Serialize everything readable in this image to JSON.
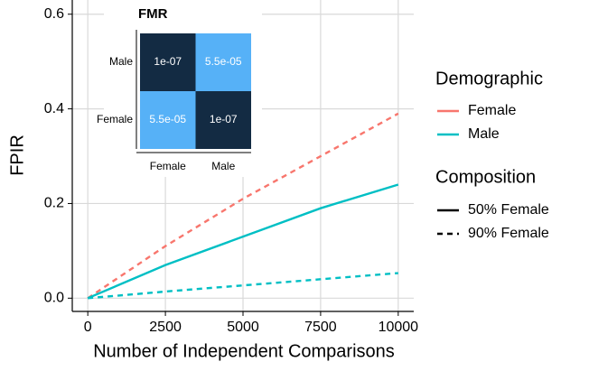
{
  "chart_data": {
    "type": "line",
    "x_label": "Number of Independent Comparisons",
    "y_label": "FPIR",
    "x": [
      0,
      2500,
      5000,
      7500,
      10000
    ],
    "xlim": [
      -500,
      10500
    ],
    "ylim": [
      -0.028,
      0.63
    ],
    "xticks": [
      0,
      2500,
      5000,
      7500,
      10000
    ],
    "yticks": [
      {
        "value": 0,
        "label": "0.0"
      },
      0.2,
      0.4,
      0.6
    ],
    "grid": true,
    "series": [
      {
        "demographic": "Female",
        "composition": "90% Female",
        "color": "#f8766d",
        "dashed": true,
        "values": [
          0,
          0.11,
          0.21,
          0.3,
          0.39
        ]
      },
      {
        "demographic": "Male",
        "composition": "50% Female",
        "color": "#00bfc4",
        "dashed": false,
        "values": [
          0,
          0.07,
          0.13,
          0.19,
          0.24
        ]
      },
      {
        "demographic": "Male",
        "composition": "90% Female",
        "color": "#00bfc4",
        "dashed": true,
        "values": [
          0,
          0.014,
          0.027,
          0.04,
          0.053
        ]
      }
    ],
    "legend": {
      "demographic_title": "Demographic",
      "demographic": [
        {
          "name": "Female",
          "color": "#f8766d"
        },
        {
          "name": "Male",
          "color": "#00bfc4"
        }
      ],
      "composition_title": "Composition",
      "composition": [
        {
          "name": "50% Female",
          "dashed": false
        },
        {
          "name": "90% Female",
          "dashed": true
        }
      ]
    },
    "inset": {
      "type": "heatmap",
      "title": "FMR",
      "rows": [
        "Male",
        "Female"
      ],
      "columns": [
        "Female",
        "Male"
      ],
      "values": [
        [
          1e-07,
          5.5e-05
        ],
        [
          5.5e-05,
          1e-07
        ]
      ],
      "value_labels": [
        [
          "1e-07",
          "5.5e-05"
        ],
        [
          "5.5e-05",
          "1e-07"
        ]
      ],
      "low_color": "#132b43",
      "high_color": "#56b1f7"
    }
  }
}
